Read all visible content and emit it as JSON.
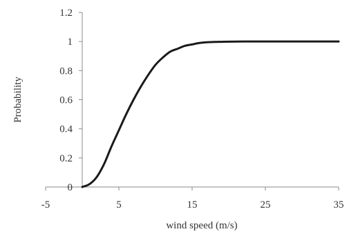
{
  "chart_data": {
    "type": "line",
    "title": "",
    "xlabel": "wind speed (m/s)",
    "ylabel": "Probability",
    "xlim": [
      -5,
      35
    ],
    "ylim": [
      0,
      1.2
    ],
    "x_ticks": [
      -5,
      5,
      15,
      25,
      35
    ],
    "x_tick_labels": [
      "-5",
      "5",
      "15",
      "25",
      "35"
    ],
    "y_ticks": [
      0,
      0.2,
      0.4,
      0.6,
      0.8,
      1.0,
      1.2
    ],
    "y_tick_labels": [
      "0",
      "0.2",
      "0.4",
      "0.6",
      "0.8",
      "1",
      "1.2"
    ],
    "grid": false,
    "legend": "none",
    "series": [
      {
        "color": "#1a1a1a",
        "x": [
          0,
          1,
          2,
          3,
          4,
          5,
          6,
          7,
          8,
          9,
          10,
          11,
          12,
          13,
          14,
          15,
          16,
          17,
          18,
          19,
          20,
          22,
          25,
          30,
          35
        ],
        "y": [
          0,
          0.02,
          0.07,
          0.16,
          0.28,
          0.39,
          0.5,
          0.6,
          0.69,
          0.77,
          0.84,
          0.89,
          0.93,
          0.95,
          0.97,
          0.98,
          0.99,
          0.995,
          0.997,
          0.998,
          0.999,
          1.0,
          1.0,
          1.0,
          1.0
        ]
      }
    ]
  }
}
